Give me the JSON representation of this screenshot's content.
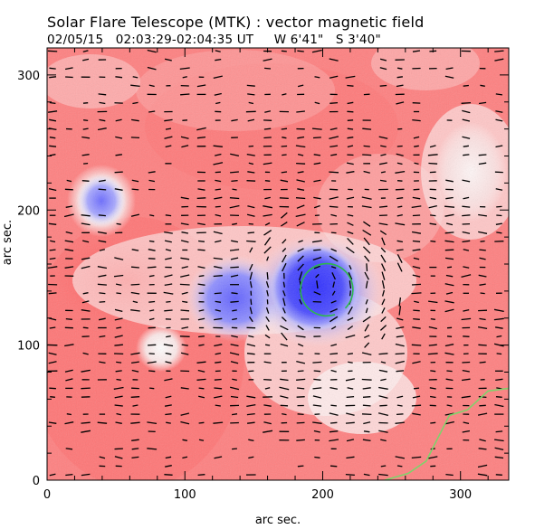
{
  "header": {
    "title": "Solar Flare Telescope (MTK) : vector magnetic field",
    "subtitle": "02/05/15   02:03:29-02:04:35 UT     W 6'41\"   S 3'40\""
  },
  "colors": {
    "positive": "#ff6a6a",
    "negative": "#3a3aff",
    "arrow": "#000000",
    "contour": "#2db84c",
    "limb": "#7fd36b"
  },
  "chart_data": {
    "type": "heatmap",
    "title": "Solar Flare Telescope (MTK) : vector magnetic field",
    "subtitle": "02/05/15   02:03:29-02:04:35 UT     W 6'41\"   S 3'40\"",
    "xlabel": "arc sec.",
    "ylabel": "arc sec.",
    "xlim": [
      0,
      335
    ],
    "ylim": [
      0,
      320
    ],
    "xticks": [
      0,
      100,
      200,
      300
    ],
    "yticks": [
      0,
      100,
      200,
      300
    ],
    "legend": "none",
    "grid": false,
    "polarity_regions": [
      {
        "polarity": "negative",
        "x": 200,
        "y": 145,
        "strength": "strong"
      },
      {
        "polarity": "negative",
        "x": 140,
        "y": 135,
        "strength": "moderate"
      },
      {
        "polarity": "negative",
        "x": 38,
        "y": 210,
        "strength": "moderate"
      },
      {
        "polarity": "neutral",
        "x": 85,
        "y": 100,
        "strength": "weak"
      },
      {
        "polarity": "neutral",
        "x": 310,
        "y": 210,
        "strength": "weak"
      },
      {
        "polarity": "positive",
        "x": 55,
        "y": 145,
        "strength": "strong"
      }
    ],
    "contour": {
      "center_x": 203,
      "center_y": 141,
      "radius_arcsec": 19
    },
    "limb_curve": [
      [
        245,
        0
      ],
      [
        262,
        5
      ],
      [
        275,
        14
      ],
      [
        283,
        30
      ],
      [
        292,
        48
      ],
      [
        305,
        52
      ],
      [
        320,
        66
      ],
      [
        335,
        68
      ]
    ]
  }
}
